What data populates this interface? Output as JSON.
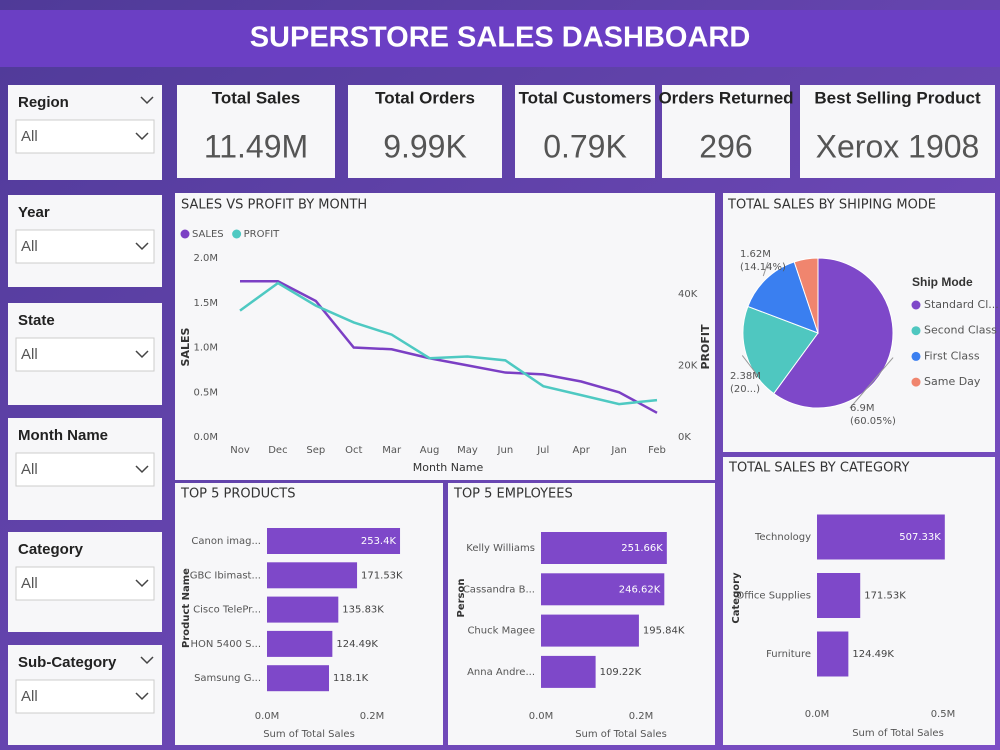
{
  "header": {
    "title": "SUPERSTORE SALES DASHBOARD"
  },
  "slicers": [
    {
      "label": "Region",
      "value": "All"
    },
    {
      "label": "Year",
      "value": "All"
    },
    {
      "label": "State",
      "value": "All"
    },
    {
      "label": "Month Name",
      "value": "All"
    },
    {
      "label": "Category",
      "value": "All"
    },
    {
      "label": "Sub-Category",
      "value": "All"
    }
  ],
  "kpis": [
    {
      "label": "Total Sales",
      "value": "11.49M"
    },
    {
      "label": "Total Orders",
      "value": "9.99K"
    },
    {
      "label": "Total Customers",
      "value": "0.79K"
    },
    {
      "label": "Orders Returned",
      "value": "296"
    },
    {
      "label": "Best Selling Product",
      "value": "Xerox 1908"
    }
  ],
  "chart_data": [
    {
      "type": "line",
      "title": "SALES VS PROFIT BY MONTH",
      "xlabel": "Month Name",
      "ylabel": "SALES",
      "y2label": "PROFIT",
      "categories": [
        "Nov",
        "Dec",
        "Sep",
        "Oct",
        "Mar",
        "Aug",
        "May",
        "Jun",
        "Jul",
        "Apr",
        "Jan",
        "Feb"
      ],
      "series": [
        {
          "name": "SALES",
          "color": "#7b3fc4",
          "values": [
            1740000,
            1740000,
            1520000,
            1000000,
            980000,
            880000,
            800000,
            720000,
            700000,
            620000,
            500000,
            270000
          ]
        },
        {
          "name": "PROFIT",
          "color": "#4ec9c2",
          "axis": "y2",
          "values": [
            35300,
            43000,
            36700,
            32000,
            28600,
            22000,
            22500,
            21400,
            14200,
            11700,
            9200,
            10300
          ]
        }
      ],
      "ylim": [
        0,
        2000000
      ],
      "yticks": [
        {
          "value": 0,
          "label": "0.0M"
        },
        {
          "value": 500000,
          "label": "0.5M"
        },
        {
          "value": 1000000,
          "label": "1.0M"
        },
        {
          "value": 1500000,
          "label": "1.5M"
        },
        {
          "value": 2000000,
          "label": "2.0M"
        }
      ],
      "y2lim": [
        0,
        50000
      ],
      "y2ticks": [
        {
          "value": 0,
          "label": "0K"
        },
        {
          "value": 20000,
          "label": "20K"
        },
        {
          "value": 40000,
          "label": "40K"
        }
      ]
    },
    {
      "type": "pie",
      "title": "TOTAL SALES BY SHIPING MODE",
      "legend_title": "Ship Mode",
      "categories": [
        "Standard Cl...",
        "Second Class",
        "First Class",
        "Same Day"
      ],
      "colors": [
        "#7e48c9",
        "#4fc7c0",
        "#3a7ff0",
        "#f0856e"
      ],
      "values": [
        6900000,
        2380000,
        1620000,
        590000
      ],
      "value_labels": [
        "6.9M",
        "2.38M",
        "1.62M",
        null
      ],
      "percent_labels": [
        "(60.05%)",
        "(20...)",
        "(14.14%)",
        null
      ]
    },
    {
      "type": "bar",
      "orientation": "horizontal",
      "title": "TOP 5 PRODUCTS",
      "ylabel": "Product Name",
      "xlabel": "Sum of Total Sales",
      "categories": [
        "Canon imag...",
        "GBC Ibimast...",
        "Cisco TelePr...",
        "HON 5400 S...",
        "Samsung G..."
      ],
      "values": [
        253400,
        171530,
        135830,
        124490,
        118100
      ],
      "value_labels": [
        "253.4K",
        "171.53K",
        "135.83K",
        "124.49K",
        "118.1K"
      ],
      "color": "#7e48c9",
      "xlim": [
        0,
        260000
      ],
      "xticks": [
        {
          "value": 0,
          "label": "0.0M"
        },
        {
          "value": 200000,
          "label": "0.2M"
        }
      ]
    },
    {
      "type": "bar",
      "orientation": "horizontal",
      "title": "TOP 5 EMPLOYEES",
      "ylabel": "Person",
      "xlabel": "Sum of Total Sales",
      "categories": [
        "Kelly Williams",
        "Cassandra B...",
        "Chuck Magee",
        "Anna Andre..."
      ],
      "values": [
        251660,
        246620,
        195840,
        109220
      ],
      "value_labels": [
        "251.66K",
        "246.62K",
        "195.84K",
        "109.22K"
      ],
      "color": "#7e48c9",
      "xlim": [
        0,
        260000
      ],
      "xticks": [
        {
          "value": 0,
          "label": "0.0M"
        },
        {
          "value": 200000,
          "label": "0.2M"
        }
      ]
    },
    {
      "type": "bar",
      "orientation": "horizontal",
      "title": "TOTAL SALES BY CATEGORY",
      "ylabel": "Category",
      "xlabel": "Sum of Total Sales",
      "categories": [
        "Technology",
        "Office Supplies",
        "Furniture"
      ],
      "values": [
        507330,
        171530,
        124490
      ],
      "value_labels": [
        "507.33K",
        "171.53K",
        "124.49K"
      ],
      "color": "#7e48c9",
      "xlim": [
        0,
        520000
      ],
      "xticks": [
        {
          "value": 0,
          "label": "0.0M"
        },
        {
          "value": 500000,
          "label": "0.5M"
        }
      ]
    }
  ]
}
